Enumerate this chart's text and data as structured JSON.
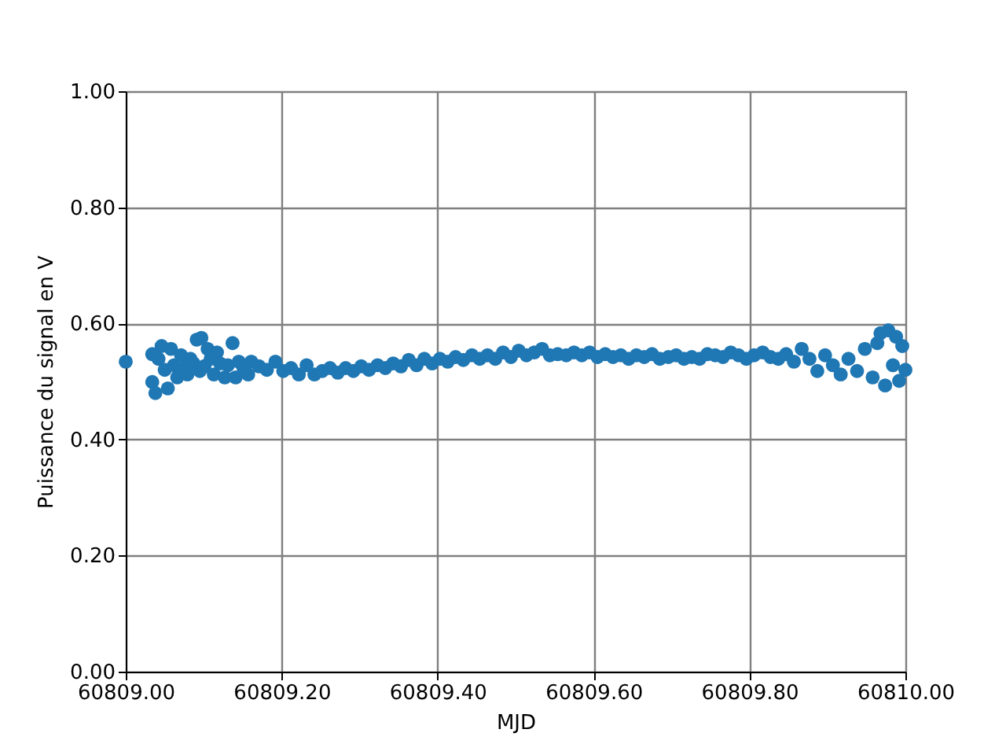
{
  "chart_data": {
    "type": "scatter",
    "xlabel": "MJD",
    "ylabel": "Puissance du signal en V",
    "xlim": [
      60809.0,
      60810.0
    ],
    "xticks": [
      {
        "value": 60809.0,
        "label": "60809.00"
      },
      {
        "value": 60809.2,
        "label": "60809.20"
      },
      {
        "value": 60809.4,
        "label": "60809.40"
      },
      {
        "value": 60809.6,
        "label": "60809.60"
      },
      {
        "value": 60809.8,
        "label": "60809.80"
      },
      {
        "value": 60810.0,
        "label": "60810.00"
      }
    ],
    "ylim": [
      0,
      1
    ],
    "yticks": [
      {
        "value": 0,
        "label": "0.00"
      },
      {
        "value": 0.2,
        "label": "0.20"
      },
      {
        "value": 0.4,
        "label": "0.40"
      },
      {
        "value": 0.6,
        "label": "0.60"
      },
      {
        "value": 0.8,
        "label": "0.80"
      },
      {
        "value": 1.0,
        "label": "1.00"
      }
    ],
    "grid": true,
    "marker": "circle",
    "legend": false,
    "series": [
      {
        "color": "#1f77b4",
        "x": [
          60809.0,
          60809.034,
          60809.034,
          60809.038,
          60809.042,
          60809.046,
          60809.05,
          60809.054,
          60809.058,
          60809.062,
          60809.066,
          60809.071,
          60809.075,
          60809.079,
          60809.083,
          60809.087,
          60809.091,
          60809.095,
          60809.097,
          60809.101,
          60809.105,
          60809.109,
          60809.113,
          60809.117,
          60809.121,
          60809.127,
          60809.131,
          60809.137,
          60809.141,
          60809.145,
          60809.151,
          60809.157,
          60809.161,
          60809.171,
          60809.181,
          60809.192,
          60809.202,
          60809.212,
          60809.222,
          60809.232,
          60809.242,
          60809.252,
          60809.262,
          60809.272,
          60809.282,
          60809.292,
          60809.302,
          60809.312,
          60809.323,
          60809.333,
          60809.343,
          60809.353,
          60809.363,
          60809.373,
          60809.383,
          60809.393,
          60809.403,
          60809.413,
          60809.423,
          60809.433,
          60809.444,
          60809.454,
          60809.464,
          60809.474,
          60809.484,
          60809.494,
          60809.504,
          60809.514,
          60809.524,
          60809.534,
          60809.544,
          60809.554,
          60809.565,
          60809.575,
          60809.585,
          60809.595,
          60809.605,
          60809.615,
          60809.625,
          60809.635,
          60809.645,
          60809.655,
          60809.665,
          60809.675,
          60809.685,
          60809.696,
          60809.706,
          60809.716,
          60809.726,
          60809.736,
          60809.746,
          60809.756,
          60809.766,
          60809.776,
          60809.786,
          60809.796,
          60809.806,
          60809.817,
          60809.827,
          60809.837,
          60809.847,
          60809.857,
          60809.867,
          60809.877,
          60809.887,
          60809.897,
          60809.907,
          60809.917,
          60809.927,
          60809.938,
          60809.948,
          60809.958,
          60809.964,
          60809.968,
          60809.974,
          60809.978,
          60809.984,
          60809.988,
          60809.992,
          60809.996,
          60810.0
        ],
        "values": [
          0.534,
          0.499,
          0.547,
          0.48,
          0.539,
          0.561,
          0.52,
          0.488,
          0.556,
          0.528,
          0.507,
          0.545,
          0.523,
          0.512,
          0.539,
          0.531,
          0.572,
          0.518,
          0.575,
          0.526,
          0.556,
          0.539,
          0.512,
          0.55,
          0.531,
          0.507,
          0.528,
          0.566,
          0.507,
          0.534,
          0.523,
          0.512,
          0.534,
          0.526,
          0.52,
          0.534,
          0.518,
          0.523,
          0.512,
          0.528,
          0.512,
          0.518,
          0.523,
          0.515,
          0.523,
          0.518,
          0.526,
          0.52,
          0.528,
          0.523,
          0.531,
          0.526,
          0.537,
          0.528,
          0.539,
          0.531,
          0.539,
          0.534,
          0.542,
          0.537,
          0.545,
          0.539,
          0.545,
          0.539,
          0.55,
          0.542,
          0.553,
          0.545,
          0.55,
          0.556,
          0.545,
          0.547,
          0.545,
          0.55,
          0.545,
          0.55,
          0.542,
          0.547,
          0.542,
          0.545,
          0.539,
          0.545,
          0.542,
          0.547,
          0.539,
          0.542,
          0.545,
          0.539,
          0.542,
          0.539,
          0.547,
          0.545,
          0.542,
          0.55,
          0.545,
          0.539,
          0.545,
          0.55,
          0.542,
          0.539,
          0.547,
          0.534,
          0.556,
          0.539,
          0.518,
          0.545,
          0.528,
          0.512,
          0.539,
          0.518,
          0.556,
          0.507,
          0.566,
          0.583,
          0.493,
          0.588,
          0.528,
          0.577,
          0.501,
          0.561,
          0.52
        ]
      }
    ]
  }
}
